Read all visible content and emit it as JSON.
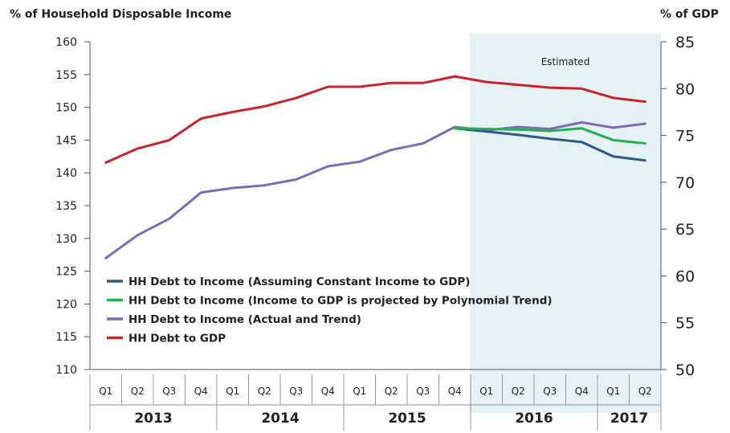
{
  "chart_data": {
    "type": "line",
    "left_axis_title": "% of Household Disposable Income",
    "right_axis_title": "% of GDP",
    "annotation": "Estimated",
    "y_left": {
      "min": 110,
      "max": 160,
      "ticks": [
        "110",
        "115",
        "120",
        "125",
        "130",
        "135",
        "140",
        "145",
        "150",
        "155",
        "160"
      ]
    },
    "y_right": {
      "min": 50,
      "max": 85,
      "ticks": [
        "50",
        "55",
        "60",
        "65",
        "70",
        "75",
        "80",
        "85"
      ]
    },
    "quarters": [
      "Q1",
      "Q2",
      "Q3",
      "Q4",
      "Q1",
      "Q2",
      "Q3",
      "Q4",
      "Q1",
      "Q2",
      "Q3",
      "Q4",
      "Q1",
      "Q2",
      "Q3",
      "Q4",
      "Q1",
      "Q2"
    ],
    "years": [
      "2013",
      "2014",
      "2015",
      "2016",
      "2017"
    ],
    "shaded_from_index": 12,
    "series": [
      {
        "name": "HH Debt to Income (Assuming Constant Income to GDP)",
        "color": "#2e5a87",
        "axis": "left",
        "x_start": 11,
        "values": [
          146.8,
          146.3,
          145.8,
          145.2,
          144.7,
          142.5,
          141.9
        ]
      },
      {
        "name": "HH Debt to Income (Income to GDP is projected by Polynomial Trend)",
        "color": "#22b14c",
        "axis": "left",
        "x_start": 11,
        "values": [
          146.8,
          146.7,
          146.6,
          146.4,
          146.8,
          145.0,
          144.5
        ]
      },
      {
        "name": "HH Debt to Income (Actual and Trend)",
        "color": "#7b6cb8",
        "axis": "left",
        "x_start": 0,
        "values": [
          127.0,
          130.5,
          133.0,
          137.0,
          137.7,
          138.1,
          139.0,
          141.0,
          141.7,
          143.5,
          144.5,
          147.0,
          146.5,
          147.0,
          146.7,
          147.7,
          146.9,
          147.5
        ]
      },
      {
        "name": "HH Debt to GDP",
        "color": "#c8242b",
        "axis": "right",
        "x_start": 0,
        "values": [
          72.1,
          73.6,
          74.5,
          76.8,
          77.5,
          78.1,
          79.0,
          80.2,
          80.2,
          80.6,
          80.6,
          81.3,
          80.7,
          80.4,
          80.1,
          80.0,
          79.0,
          78.6
        ]
      }
    ]
  }
}
